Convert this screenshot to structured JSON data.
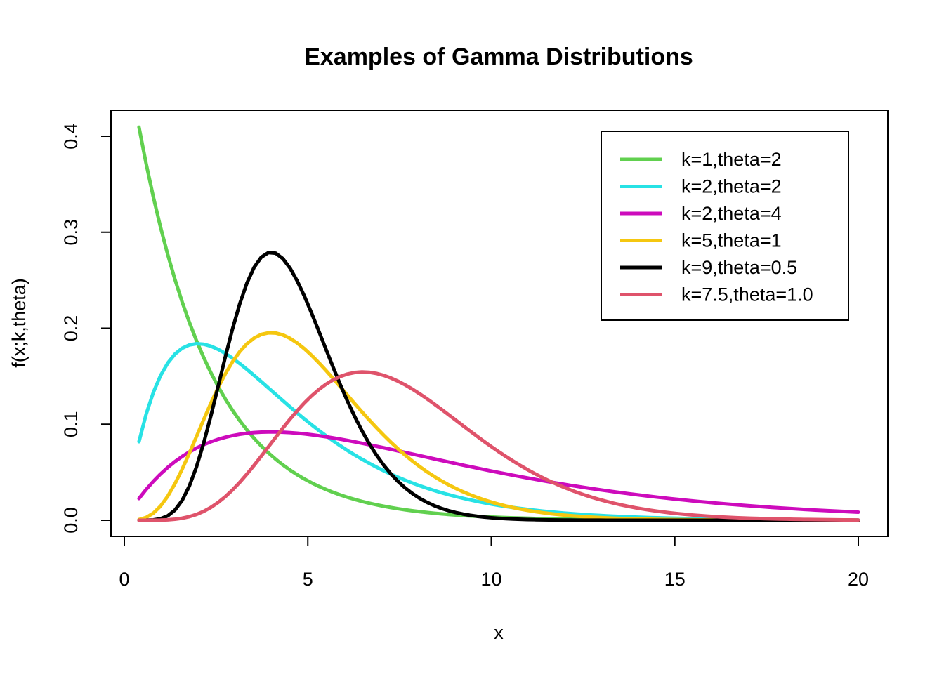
{
  "chart_data": {
    "type": "line",
    "title": "Examples of Gamma Distributions",
    "xlabel": "x",
    "ylabel": "f(x;k,theta)",
    "xlim": [
      0,
      20
    ],
    "ylim": [
      0,
      0.41
    ],
    "x_ticks": [
      "0",
      "5",
      "10",
      "15",
      "20"
    ],
    "y_ticks": [
      "0.0",
      "0.1",
      "0.2",
      "0.3",
      "0.4"
    ],
    "grid": false,
    "legend_position": "top-right",
    "x_range_plotted": [
      0.4,
      20
    ],
    "series": [
      {
        "name": "k=1,theta=2",
        "color": "#61D04F",
        "k": 1,
        "theta": 2
      },
      {
        "name": "k=2,theta=2",
        "color": "#28E2E5",
        "k": 2,
        "theta": 2
      },
      {
        "name": "k=2,theta=4",
        "color": "#CD0BBC",
        "k": 2,
        "theta": 4
      },
      {
        "name": "k=5,theta=1",
        "color": "#F5C710",
        "k": 5,
        "theta": 1
      },
      {
        "name": "k=9,theta=0.5",
        "color": "#000000",
        "k": 9,
        "theta": 0.5
      },
      {
        "name": "k=7.5,theta=1.0",
        "color": "#DF536B",
        "k": 7.5,
        "theta": 1.0
      }
    ]
  }
}
